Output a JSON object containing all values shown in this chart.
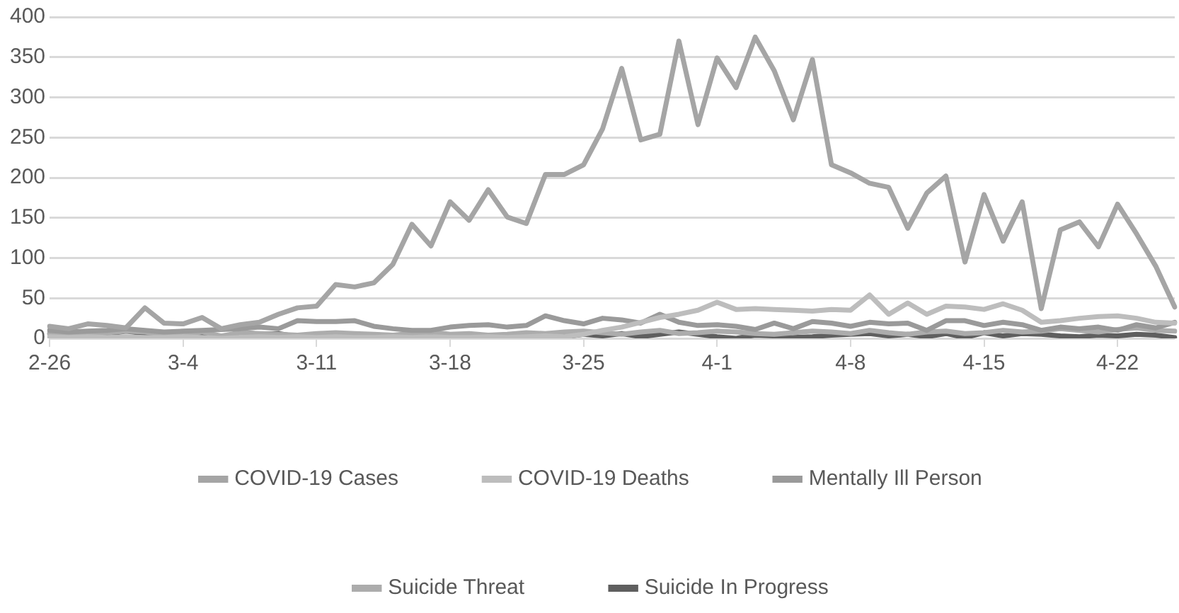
{
  "chart_data": {
    "type": "line",
    "categories": [
      "2-26",
      null,
      null,
      null,
      null,
      null,
      null,
      "3-4",
      null,
      null,
      null,
      null,
      null,
      null,
      "3-11",
      null,
      null,
      null,
      null,
      null,
      null,
      "3-18",
      null,
      null,
      null,
      null,
      null,
      null,
      "3-25",
      null,
      null,
      null,
      null,
      null,
      null,
      "4-1",
      null,
      null,
      null,
      null,
      null,
      null,
      "4-8",
      null,
      null,
      null,
      null,
      null,
      null,
      "4-15",
      null,
      null,
      null,
      null,
      null,
      null,
      "4-22",
      null,
      null,
      null
    ],
    "series": [
      {
        "name": "COVID-19 Cases",
        "color": "#a5a5a5",
        "values": [
          15,
          12,
          18,
          16,
          13,
          38,
          19,
          18,
          26,
          12,
          17,
          20,
          30,
          38,
          40,
          67,
          64,
          69,
          92,
          142,
          115,
          170,
          147,
          185,
          151,
          143,
          204,
          204,
          216,
          261,
          336,
          247,
          254,
          370,
          266,
          349,
          312,
          375,
          333,
          272,
          347,
          216,
          206,
          193,
          188,
          137,
          181,
          202,
          95,
          179,
          121,
          170,
          37,
          135,
          145,
          114,
          167,
          130,
          90,
          39
        ]
      },
      {
        "name": "COVID-19 Deaths",
        "color": "#bdbdbd",
        "values": [
          2,
          1,
          2,
          1,
          2,
          1,
          1,
          2,
          1,
          0,
          1,
          2,
          1,
          2,
          1,
          2,
          1,
          1,
          2,
          1,
          2,
          1,
          1,
          2,
          1,
          2,
          3,
          2,
          5,
          10,
          14,
          20,
          26,
          30,
          35,
          45,
          36,
          37,
          36,
          35,
          34,
          36,
          35,
          54,
          30,
          44,
          30,
          40,
          39,
          36,
          43,
          35,
          20,
          22,
          25,
          27,
          28,
          25,
          20,
          19
        ]
      },
      {
        "name": "Mentally Ill Person",
        "color": "#9a9a9a",
        "values": [
          10,
          8,
          9,
          10,
          12,
          10,
          8,
          9,
          10,
          11,
          12,
          14,
          12,
          22,
          21,
          21,
          22,
          15,
          12,
          10,
          10,
          14,
          16,
          17,
          14,
          16,
          28,
          22,
          18,
          25,
          23,
          19,
          30,
          20,
          16,
          17,
          15,
          11,
          19,
          12,
          21,
          19,
          15,
          20,
          18,
          19,
          10,
          22,
          22,
          16,
          20,
          17,
          10,
          14,
          12,
          14,
          10,
          17,
          13,
          20
        ]
      },
      {
        "name": "Suicide Threat",
        "color": "#acacac",
        "values": [
          6,
          4,
          5,
          7,
          9,
          8,
          5,
          4,
          8,
          3,
          7,
          6,
          5,
          4,
          6,
          7,
          6,
          5,
          4,
          6,
          8,
          5,
          6,
          4,
          5,
          7,
          6,
          8,
          9,
          7,
          5,
          8,
          10,
          6,
          7,
          9,
          8,
          6,
          5,
          7,
          9,
          8,
          6,
          10,
          7,
          5,
          8,
          9,
          6,
          7,
          10,
          8,
          9,
          12,
          10,
          8,
          11,
          13,
          10,
          9
        ]
      },
      {
        "name": "Suicide In Progress",
        "color": "#5f5f5f",
        "values": [
          6,
          3,
          4,
          5,
          9,
          6,
          3,
          2,
          6,
          0,
          8,
          5,
          6,
          2,
          4,
          6,
          3,
          2,
          3,
          6,
          4,
          3,
          2,
          4,
          3,
          2,
          4,
          2,
          5,
          3,
          6,
          2,
          5,
          8,
          5,
          2,
          0,
          4,
          3,
          1,
          2,
          4,
          5,
          6,
          3,
          5,
          2,
          6,
          1,
          7,
          3,
          6,
          5,
          3,
          2,
          4,
          3,
          5,
          4,
          1
        ]
      }
    ],
    "ylim": [
      0,
      400
    ],
    "yticks": [
      0,
      50,
      100,
      150,
      200,
      250,
      300,
      350,
      400
    ],
    "grid": "y",
    "legend": "bottom",
    "marker": "none",
    "line_style": "solid"
  }
}
